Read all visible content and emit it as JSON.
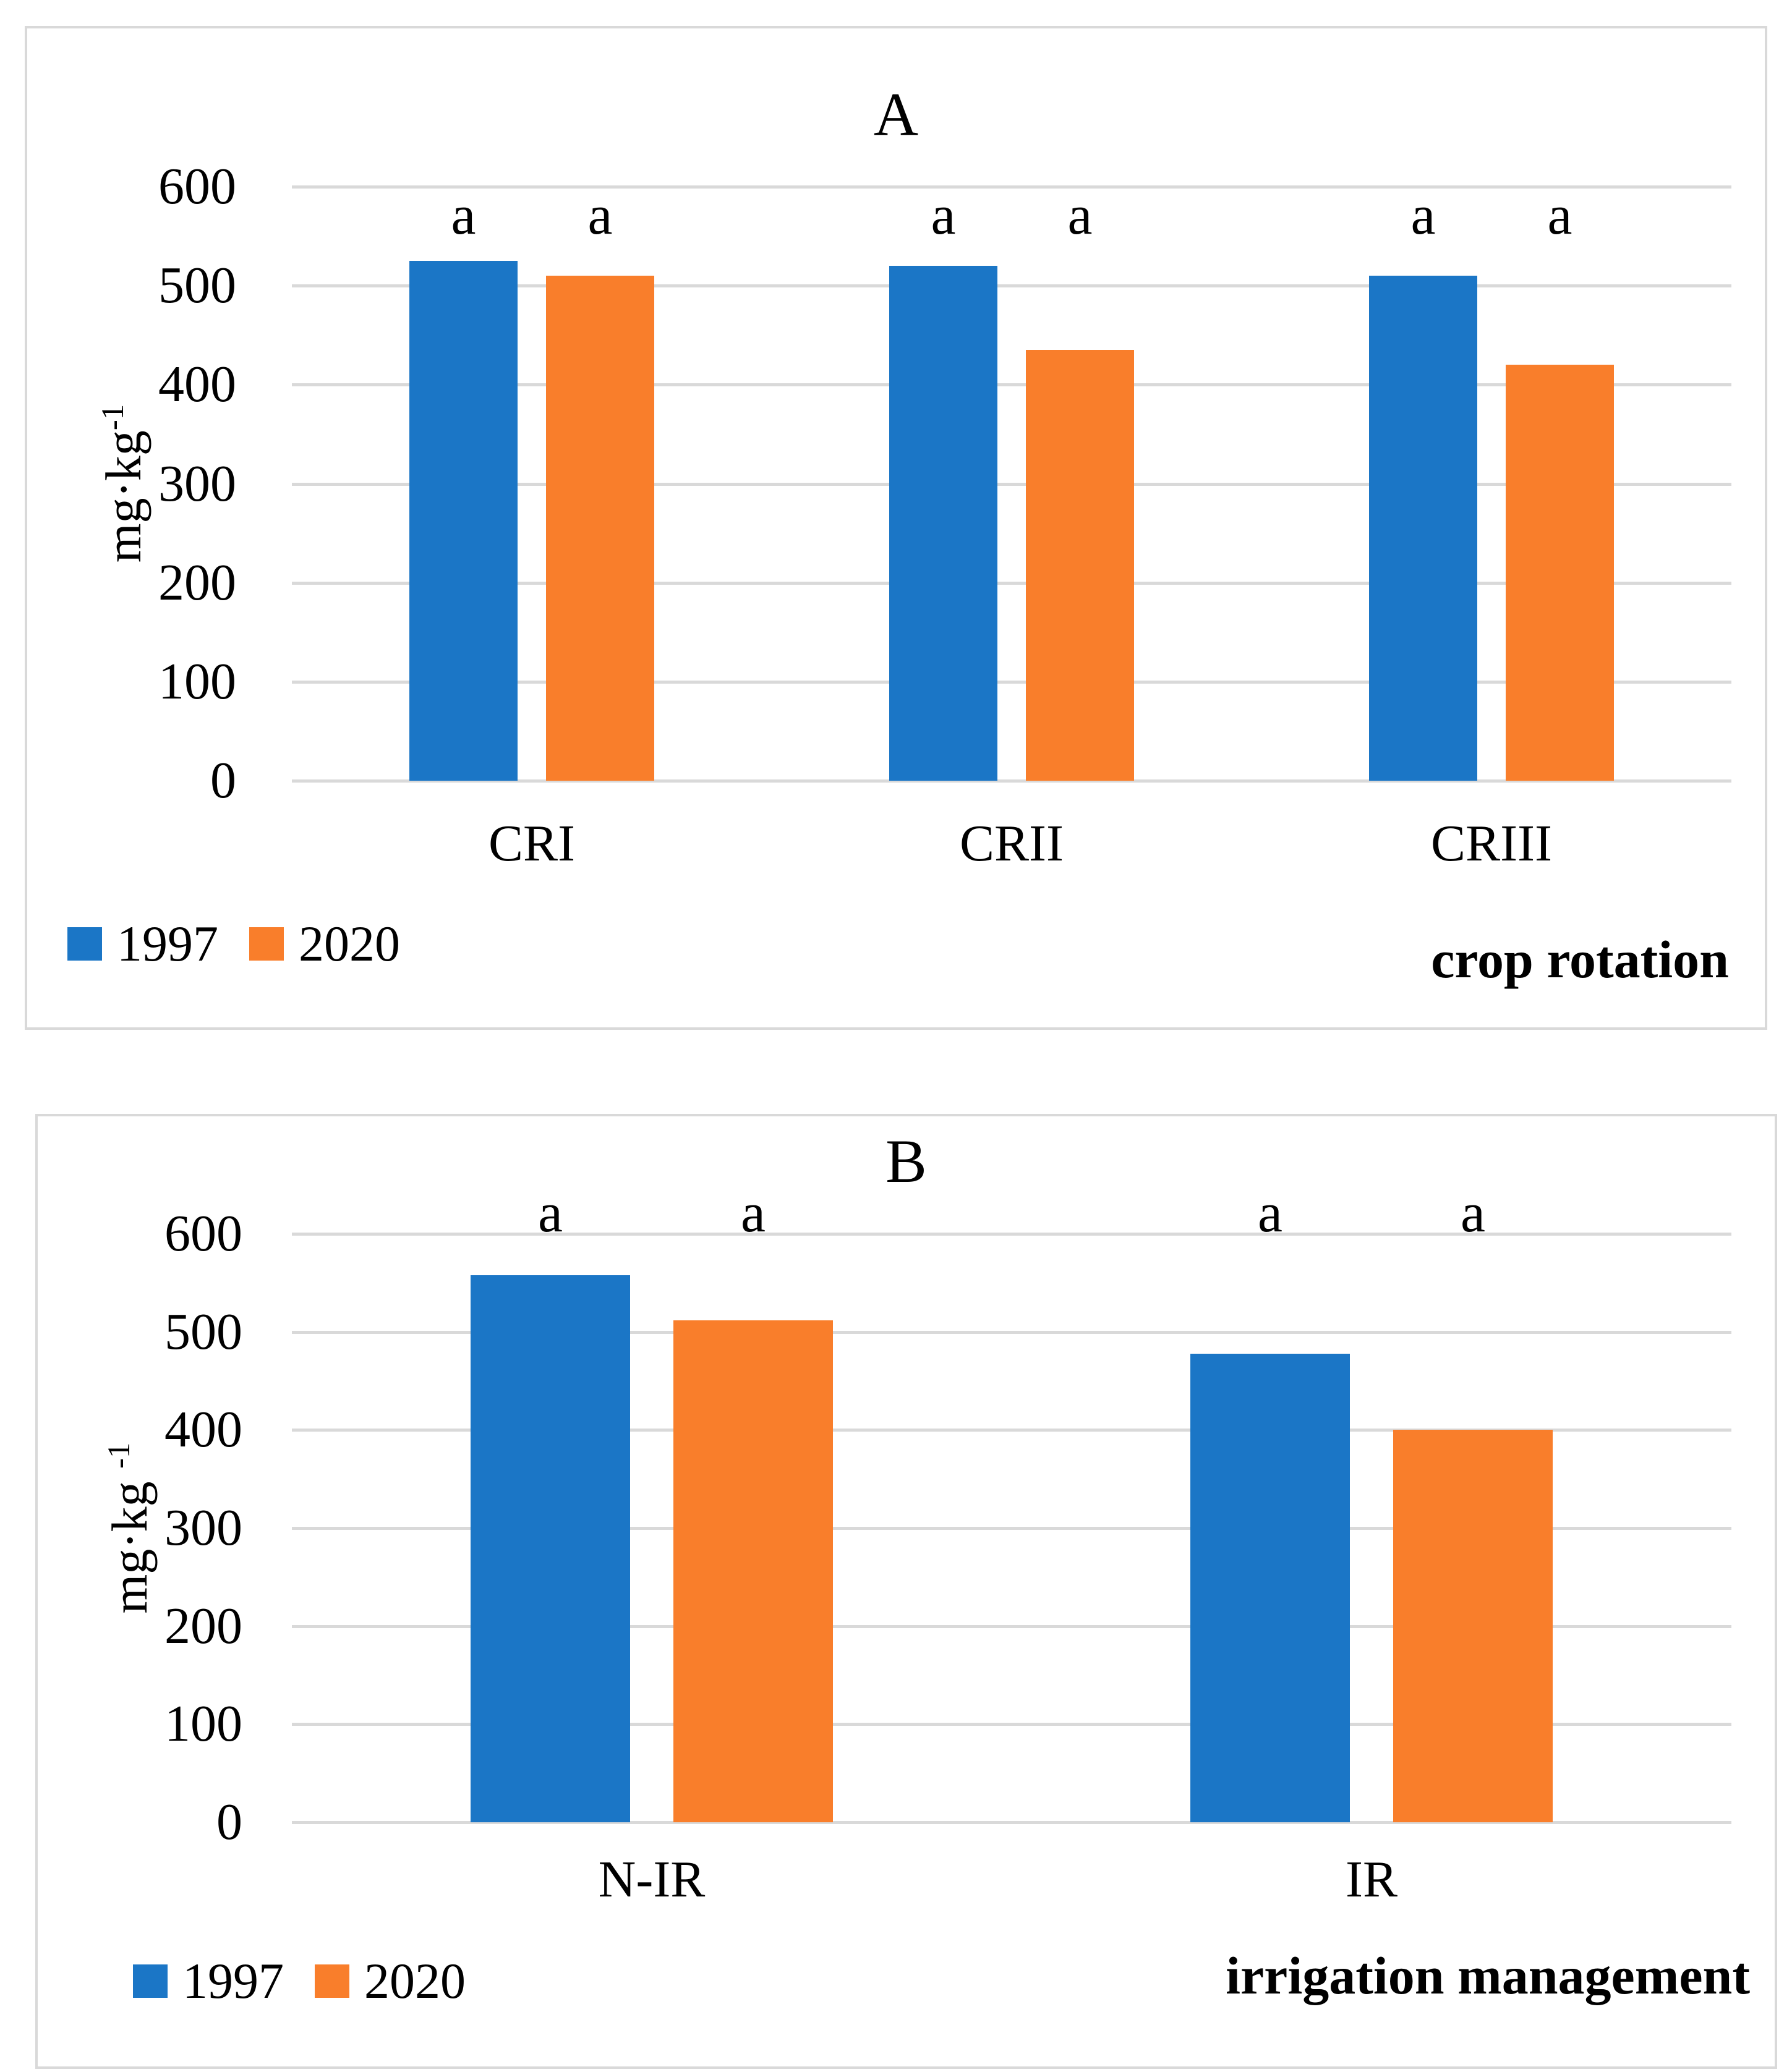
{
  "figure": {
    "background": "#FFFFFF",
    "panel_border_color": "#D9D9D9",
    "grid_color": "#D9D9D9",
    "text_color": "#000000"
  },
  "legend": {
    "items": [
      {
        "label": "1997",
        "color": "#1B76C6"
      },
      {
        "label": "2020",
        "color": "#F97E2B"
      }
    ]
  },
  "chart_data": [
    {
      "type": "bar",
      "panel_label": "A",
      "title": "A",
      "categories": [
        "CRI",
        "CRII",
        "CRIII"
      ],
      "series": [
        {
          "name": "1997",
          "color": "#1B76C6",
          "values": [
            525,
            520,
            510
          ]
        },
        {
          "name": "2020",
          "color": "#F97E2B",
          "values": [
            510,
            435,
            420
          ]
        }
      ],
      "bar_annotations": [
        [
          "a",
          "a"
        ],
        [
          "a",
          "a"
        ],
        [
          "a",
          "a"
        ]
      ],
      "ylabel": "mg·kg⁻¹",
      "ylabel_main": "mg·kg",
      "ylabel_sup": "-1",
      "xlabel": "crop rotation",
      "ylim": [
        0,
        600
      ],
      "yticks": [
        0,
        100,
        200,
        300,
        400,
        500,
        600
      ],
      "ytick_step": 100,
      "grid": "horizontal",
      "legend_position": "bottom-left"
    },
    {
      "type": "bar",
      "panel_label": "B",
      "title": "B",
      "categories": [
        "N-IR",
        "IR"
      ],
      "series": [
        {
          "name": "1997",
          "color": "#1B76C6",
          "values": [
            558,
            478
          ]
        },
        {
          "name": "2020",
          "color": "#F97E2B",
          "values": [
            512,
            400
          ]
        }
      ],
      "bar_annotations": [
        [
          "a",
          "a"
        ],
        [
          "a",
          "a"
        ]
      ],
      "ylabel": "mg·kg ⁻¹",
      "ylabel_main": "mg·kg ",
      "ylabel_sup": "-1",
      "xlabel": "irrigation management",
      "ylim": [
        0,
        600
      ],
      "yticks": [
        0,
        100,
        200,
        300,
        400,
        500,
        600
      ],
      "ytick_step": 100,
      "grid": "horizontal",
      "legend_position": "bottom-left"
    }
  ]
}
